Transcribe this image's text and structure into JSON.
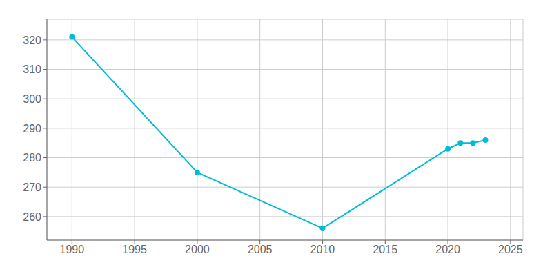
{
  "chart_data": {
    "type": "line",
    "x": [
      1990,
      2000,
      2010,
      2020,
      2021,
      2022,
      2023
    ],
    "values": [
      321,
      275,
      256,
      283,
      285,
      285,
      286
    ],
    "color": "#00bcd4",
    "marker": "circle",
    "xlim": [
      1988,
      2026
    ],
    "ylim": [
      252,
      327
    ],
    "xticks": [
      1990,
      1995,
      2000,
      2005,
      2010,
      2015,
      2020,
      2025
    ],
    "yticks": [
      260,
      270,
      280,
      290,
      300,
      310,
      320
    ],
    "grid": true
  }
}
